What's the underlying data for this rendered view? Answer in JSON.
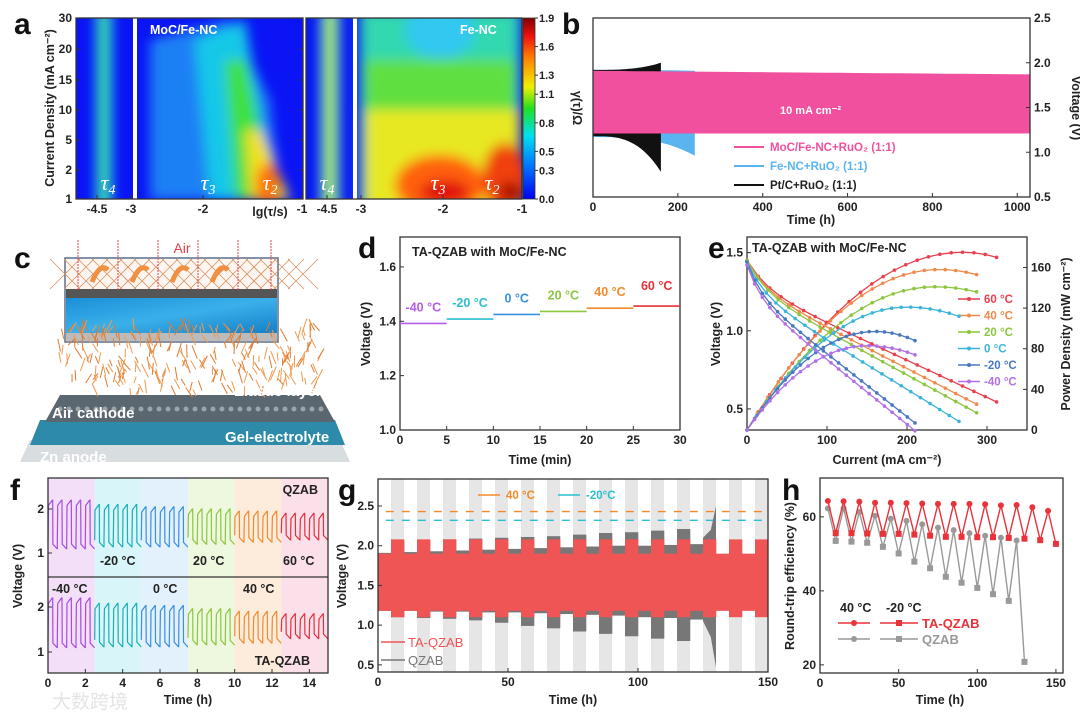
{
  "watermark": "大数跨境",
  "panels": {
    "a": {
      "letter": "a"
    },
    "b": {
      "letter": "b"
    },
    "c": {
      "letter": "c"
    },
    "d": {
      "letter": "d"
    },
    "e": {
      "letter": "e"
    },
    "f": {
      "letter": "f"
    },
    "g": {
      "letter": "g"
    },
    "h": {
      "letter": "h"
    }
  },
  "illustration": {
    "air": "Air",
    "elastic_layer": "Elastic layer",
    "air_cathode": "Air cathode",
    "gel_electrolyte": "Gel-electrolyte",
    "zn_anode": "Zn anode"
  },
  "chart_data": [
    {
      "panel": "a",
      "type": "heatmap",
      "titles": [
        "MoC/Fe-NC",
        "Fe-NC"
      ],
      "xlabel": "lg(τ/s)",
      "ylabel": "Current Density (mA cm⁻²)",
      "colorbar_label": "γ(τ)/Ω",
      "xticks": [
        "-4.5",
        "-3",
        "-2",
        "-1"
      ],
      "yticks": [
        "1",
        "2",
        "5",
        "10",
        "15",
        "20",
        "30"
      ],
      "colorbar_ticks": [
        "0.0",
        "0.3",
        "0.5",
        "0.8",
        "1.1",
        "1.3",
        "1.6",
        "1.9"
      ],
      "colorbar_range": [
        0.0,
        1.9
      ],
      "peak_labels": [
        "τ4",
        "τ3",
        "τ2"
      ],
      "peaks": {
        "MoC/Fe-NC": [
          {
            "label": "τ4",
            "lg_tau": -4.4,
            "value": 0.6
          },
          {
            "label": "τ3",
            "lg_tau": -2.3,
            "value": 0.3
          },
          {
            "label": "τ2",
            "lg_tau": -1.3,
            "value": 1.3
          }
        ],
        "Fe-NC": [
          {
            "label": "τ4",
            "lg_tau": -4.4,
            "value": 0.9
          },
          {
            "label": "τ3",
            "lg_tau": -2.0,
            "value": 1.7
          },
          {
            "label": "τ2",
            "lg_tau": -1.3,
            "value": 1.8
          }
        ]
      }
    },
    {
      "panel": "b",
      "type": "area",
      "xlabel": "Time (h)",
      "ylabel": "Voltage (V)",
      "xlim": [
        0,
        1030
      ],
      "ylim": [
        0.5,
        2.5
      ],
      "xticks": [
        0,
        200,
        400,
        600,
        800,
        1000
      ],
      "yticks": [
        "0.5",
        "1.0",
        "1.5",
        "2.0",
        "2.5"
      ],
      "annotation": "10 mA cm⁻²",
      "series": [
        {
          "name": "MoC/Fe-NC+RuO₂ (1:1)",
          "color": "#f0509e",
          "end_time": 1030,
          "top": [
            1.91,
            1.87
          ],
          "bottom": [
            1.21,
            1.21
          ]
        },
        {
          "name": "Fe-NC+RuO₂ (1:1)",
          "color": "#5ab4f0",
          "end_time": 240,
          "top": [
            1.92,
            1.91
          ],
          "bottom": [
            1.17,
            0.96
          ]
        },
        {
          "name": "Pt/C+RuO₂ (1:1)",
          "color": "#111111",
          "end_time": 160,
          "top": [
            1.92,
            2.0
          ],
          "bottom": [
            1.18,
            0.78
          ]
        }
      ]
    },
    {
      "panel": "d",
      "type": "line",
      "title": "TA-QZAB with MoC/Fe-NC",
      "xlabel": "Time (min)",
      "ylabel": "Voltage (V)",
      "xlim": [
        0,
        30
      ],
      "ylim": [
        1.0,
        1.71
      ],
      "xticks": [
        0,
        5,
        10,
        15,
        20,
        25,
        30
      ],
      "yticks": [
        "1.0",
        "1.2",
        "1.4",
        "1.6"
      ],
      "series": [
        {
          "name": "-40 °C",
          "color": "#b45ee8",
          "t": [
            0,
            5
          ],
          "v": 1.392
        },
        {
          "name": "-20 °C",
          "color": "#2bbfcf",
          "t": [
            5,
            10
          ],
          "v": 1.408
        },
        {
          "name": "0 °C",
          "color": "#3a90e0",
          "t": [
            10,
            15
          ],
          "v": 1.425
        },
        {
          "name": "20 °C",
          "color": "#8cc63f",
          "t": [
            15,
            20
          ],
          "v": 1.436
        },
        {
          "name": "40 °C",
          "color": "#f08a2c",
          "t": [
            20,
            25
          ],
          "v": 1.448
        },
        {
          "name": "60 °C",
          "color": "#e8303a",
          "t": [
            25,
            30
          ],
          "v": 1.456
        }
      ]
    },
    {
      "panel": "e",
      "type": "line",
      "title": "TA-QZAB with MoC/Fe-NC",
      "xlabel": "Current (mA cm⁻²)",
      "ylabel": "Voltage (V)",
      "y2label": "Power Density (mW cm⁻²)",
      "xlim": [
        0,
        350
      ],
      "ylim": [
        0.365,
        1.6
      ],
      "y2lim": [
        0,
        190
      ],
      "xticks": [
        0,
        100,
        200,
        300
      ],
      "yticks": [
        "0.5",
        "1.0",
        "1.5"
      ],
      "y2ticks": [
        0,
        40,
        80,
        120,
        160
      ],
      "series": [
        {
          "name": "60 °C",
          "color": "#e8404e",
          "i_max": 312,
          "v_start": 1.45,
          "v_end": 0.545,
          "p_peak": 175,
          "i_peak": 270,
          "p_end": 170
        },
        {
          "name": "40 °C",
          "color": "#f08a4c",
          "i_max": 287,
          "v_start": 1.45,
          "v_end": 0.53,
          "p_peak": 158,
          "i_peak": 240,
          "p_end": 153
        },
        {
          "name": "20 °C",
          "color": "#8cc63f",
          "i_max": 287,
          "v_start": 1.45,
          "v_end": 0.475,
          "p_peak": 141,
          "i_peak": 235,
          "p_end": 136
        },
        {
          "name": "0 °C",
          "color": "#3ab4d8",
          "i_max": 265,
          "v_start": 1.44,
          "v_end": 0.42,
          "p_peak": 121,
          "i_peak": 200,
          "p_end": 112
        },
        {
          "name": "-20 °C",
          "color": "#4a78c0",
          "i_max": 210,
          "v_start": 1.44,
          "v_end": 0.41,
          "p_peak": 97,
          "i_peak": 160,
          "p_end": 88
        },
        {
          "name": "-40 °C",
          "color": "#b070e8",
          "i_max": 210,
          "v_start": 1.42,
          "v_end": 0.36,
          "p_peak": 83,
          "i_peak": 150,
          "p_end": 74
        }
      ]
    },
    {
      "panel": "f",
      "type": "line",
      "xlabel": "Time (h)",
      "ylabel": "Voltage (V)",
      "xlim": [
        0,
        15
      ],
      "xticks": [
        0,
        2,
        4,
        6,
        8,
        10,
        12,
        14
      ],
      "yticks": [
        "1",
        "2"
      ],
      "subplots": [
        "QZAB",
        "TA-QZAB"
      ],
      "temperature_labels_top": [
        "-20 °C",
        "20 °C",
        "60 °C"
      ],
      "temperature_labels_bottom": [
        "-40 °C",
        "0 °C",
        "40 °C"
      ],
      "segments": [
        {
          "name": "-40 °C",
          "color": "#a64ce0",
          "bg": "#f3e0f8",
          "t": [
            0,
            2.5
          ],
          "QZAB": [
            2.2,
            1.1
          ],
          "TA-QZAB": [
            2.2,
            1.1
          ]
        },
        {
          "name": "-20 °C",
          "color": "#1aaeb8",
          "bg": "#d8f6fa",
          "t": [
            2.5,
            5
          ],
          "QZAB": [
            2.1,
            1.14
          ],
          "TA-QZAB": [
            2.08,
            1.12
          ]
        },
        {
          "name": "0 °C",
          "color": "#3a8fe0",
          "bg": "#e3f1fc",
          "t": [
            5,
            7.5
          ],
          "QZAB": [
            2.05,
            1.14
          ],
          "TA-QZAB": [
            2.03,
            1.12
          ]
        },
        {
          "name": "20 °C",
          "color": "#8cc63f",
          "bg": "#eef8df",
          "t": [
            7.5,
            10
          ],
          "QZAB": [
            2.0,
            1.2
          ],
          "TA-QZAB": [
            1.96,
            1.16
          ]
        },
        {
          "name": "40 °C",
          "color": "#f08a2c",
          "bg": "#fdebdc",
          "t": [
            10,
            12.5
          ],
          "QZAB": [
            1.95,
            1.25
          ],
          "TA-QZAB": [
            1.9,
            1.2
          ]
        },
        {
          "name": "60 °C",
          "color": "#e03040",
          "bg": "#fbe0ea",
          "t": [
            12.5,
            15
          ],
          "QZAB": [
            1.9,
            1.3
          ],
          "TA-QZAB": [
            1.85,
            1.3
          ]
        }
      ]
    },
    {
      "panel": "g",
      "type": "area",
      "xlabel": "Time (h)",
      "ylabel": "Voltage (V)",
      "xlim": [
        0,
        150
      ],
      "ylim": [
        0.41,
        2.84
      ],
      "xticks": [
        0,
        50,
        100,
        150
      ],
      "yticks": [
        "0.5",
        "1.0",
        "1.5",
        "2.0",
        "2.5"
      ],
      "reference_lines": [
        {
          "name": "40 °C",
          "color": "#f08a2c",
          "v": 2.43
        },
        {
          "name": "-20°C",
          "color": "#2bbfcf",
          "v": 2.32
        }
      ],
      "interval_h": 5,
      "series": [
        {
          "name": "TA-QZAB",
          "color": "#f05555",
          "warm_top": 1.9,
          "warm_bottom": 1.18,
          "cold_top": 2.08,
          "cold_bottom": 1.1,
          "end_time": 150
        },
        {
          "name": "QZAB",
          "color": "#777777",
          "end_time": 130,
          "warm_top": [
            1.91,
            1.92,
            1.93,
            1.94,
            1.95,
            1.96,
            1.97,
            1.98,
            1.99,
            2.0,
            2.0,
            2.01,
            2.02
          ],
          "warm_bottom": [
            1.18,
            1.18,
            1.17,
            1.17,
            1.16,
            1.16,
            1.15,
            1.14,
            1.13,
            1.12,
            1.1,
            1.09,
            1.07
          ],
          "cold_top": [
            2.05,
            2.07,
            2.08,
            2.09,
            2.1,
            2.11,
            2.12,
            2.14,
            2.16,
            2.17,
            2.19,
            2.21,
            2.5
          ],
          "cold_bottom": [
            1.1,
            1.09,
            1.08,
            1.06,
            1.03,
            0.99,
            0.96,
            0.92,
            0.89,
            0.86,
            0.83,
            0.8,
            0.47
          ]
        }
      ]
    },
    {
      "panel": "h",
      "type": "line",
      "xlabel": "Time (h)",
      "ylabel": "Round-trip efficiency (%)",
      "xlim": [
        0,
        154.5
      ],
      "ylim": [
        17.8,
        70.5
      ],
      "xticks": [
        0,
        50,
        100,
        150
      ],
      "yticks": [
        20,
        40,
        60
      ],
      "legend_headers": [
        "40 °C",
        "-20 °C"
      ],
      "series": [
        {
          "name": "TA-QZAB",
          "color": "#e8333a",
          "x40": [
            5,
            15,
            25,
            35,
            45,
            55,
            65,
            75,
            85,
            95,
            105,
            115,
            125,
            135,
            145
          ],
          "y40": [
            64.3,
            64.2,
            64.1,
            63.8,
            63.8,
            63.7,
            63.6,
            63.5,
            63.5,
            63.5,
            63.4,
            63.1,
            63.2,
            62.6,
            61.6
          ],
          "x20": [
            10,
            20,
            30,
            40,
            50,
            60,
            70,
            80,
            90,
            100,
            110,
            120,
            130,
            140,
            150
          ],
          "y20": [
            55.6,
            55.6,
            55.5,
            55.4,
            55.4,
            55.2,
            54.9,
            54.6,
            54.6,
            54.5,
            54.5,
            54.3,
            54.1,
            53.7,
            52.7
          ]
        },
        {
          "name": "QZAB",
          "color": "#999999",
          "x40": [
            5,
            15,
            25,
            35,
            45,
            55,
            65,
            75,
            85,
            95,
            105,
            115,
            125
          ],
          "y40": [
            62.3,
            62.3,
            61.3,
            60.3,
            59.5,
            58.9,
            58.0,
            57.1,
            56.4,
            55.6,
            54.9,
            54.4,
            53.6
          ],
          "x20": [
            10,
            20,
            30,
            40,
            50,
            60,
            70,
            80,
            90,
            100,
            110,
            120,
            130
          ],
          "y20": [
            53.5,
            53.3,
            53.0,
            51.9,
            50.1,
            47.9,
            46.1,
            43.8,
            42.2,
            40.8,
            39.1,
            37.3,
            20.8
          ]
        }
      ]
    }
  ]
}
